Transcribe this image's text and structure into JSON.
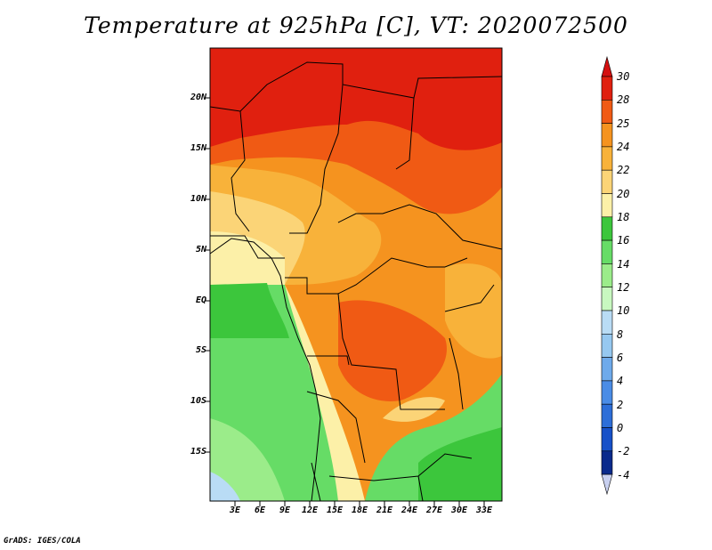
{
  "title": "Temperature at 925hPa [C], VT: 2020072500",
  "credit": "GrADS: IGES/COLA",
  "lat_ticks": [
    "20N",
    "15N",
    "10N",
    "5N",
    "EQ",
    "5S",
    "10S",
    "15S"
  ],
  "lon_ticks": [
    "3E",
    "6E",
    "9E",
    "12E",
    "15E",
    "18E",
    "21E",
    "24E",
    "27E",
    "30E",
    "33E"
  ],
  "colorbar": {
    "labels": [
      "30",
      "28",
      "25",
      "24",
      "22",
      "20",
      "18",
      "16",
      "14",
      "12",
      "10",
      "8",
      "6",
      "4",
      "2",
      "0",
      "-2",
      "-4"
    ],
    "colors": [
      "#e0200f",
      "#f05a14",
      "#f5931f",
      "#f8b23a",
      "#fbd477",
      "#fcf0a8",
      "#3cc63c",
      "#66dc66",
      "#9bec8a",
      "#c8f8c0",
      "#b9dcf5",
      "#96c8f0",
      "#6eaaeb",
      "#4a8ce6",
      "#2d6ed8",
      "#1650c8",
      "#0a2a8c"
    ],
    "top_arrow_color": "#d41010",
    "bottom_arrow_color": "#c8d0f0"
  }
}
